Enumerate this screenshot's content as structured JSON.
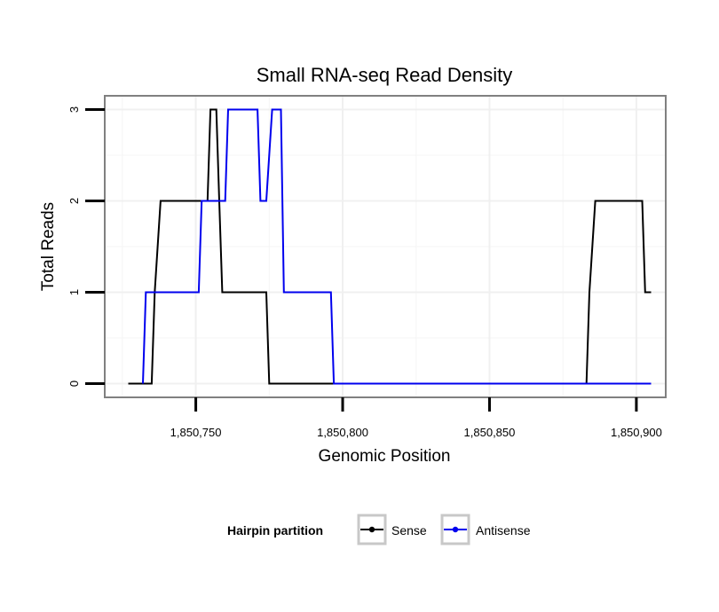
{
  "chart_data": {
    "type": "line",
    "title": "Small RNA-seq Read Density",
    "xlabel": "Genomic Position",
    "ylabel": "Total Reads",
    "xlim": [
      1850719,
      1850910
    ],
    "ylim": [
      -0.15,
      3.15
    ],
    "x_ticks": [
      1850750,
      1850800,
      1850850,
      1850900
    ],
    "x_tick_labels": [
      "1,850,750",
      "1,850,800",
      "1,850,850",
      "1,850,900"
    ],
    "y_ticks": [
      0,
      1,
      2,
      3
    ],
    "y_tick_labels": [
      "0",
      "1",
      "2",
      "3"
    ],
    "grid": true,
    "legend": {
      "title": "Hairpin partition",
      "position": "bottom",
      "entries": [
        "Sense",
        "Antisense"
      ]
    },
    "series": [
      {
        "name": "Sense",
        "color": "#000000",
        "x": [
          1850727,
          1850735,
          1850736,
          1850738,
          1850754,
          1850755,
          1850757,
          1850758,
          1850759,
          1850774,
          1850775,
          1850883,
          1850884,
          1850886,
          1850902,
          1850903,
          1850904,
          1850905
        ],
        "y": [
          0,
          0,
          1,
          2,
          2,
          3,
          3,
          2,
          1,
          1,
          0,
          0,
          1,
          2,
          2,
          1,
          1,
          1
        ]
      },
      {
        "name": "Antisense",
        "color": "#0000ee",
        "x": [
          1850732,
          1850733,
          1850740,
          1850751,
          1850752,
          1850760,
          1850761,
          1850762,
          1850771,
          1850772,
          1850774,
          1850776,
          1850779,
          1850780,
          1850796,
          1850797,
          1850905
        ],
        "y": [
          0,
          1,
          1,
          1,
          2,
          2,
          3,
          3,
          3,
          2,
          2,
          3,
          3,
          1,
          1,
          0,
          0
        ]
      }
    ]
  }
}
